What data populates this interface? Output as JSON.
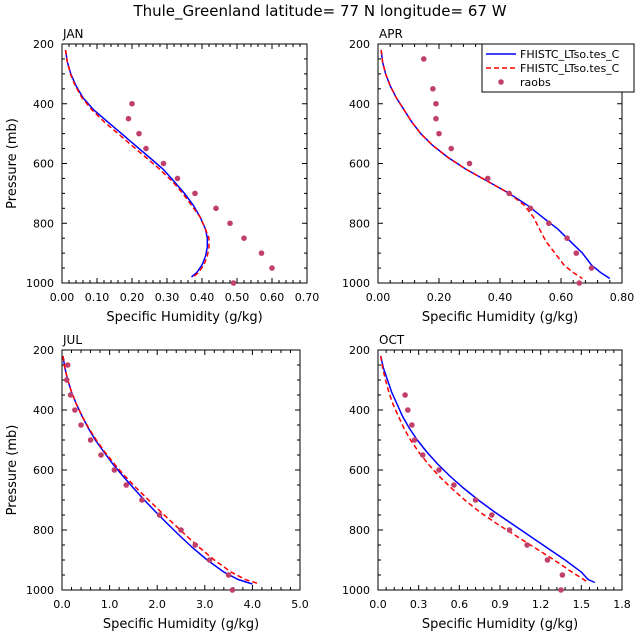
{
  "title": "Thule_Greenland  latitude= 77 N longitude= 67 W",
  "legend": {
    "position": "top-right of APR panel",
    "entries": [
      {
        "label": "FHISTC_LTso.tes_C",
        "color": "#0000ff",
        "style": "solid"
      },
      {
        "label": "FHISTC_LTso.tes_C",
        "color": "#ff0000",
        "style": "dashed"
      },
      {
        "label": "raobs",
        "color": "#c0406a",
        "style": "marker"
      }
    ]
  },
  "chart_data": [
    {
      "type": "line",
      "panel": "JAN",
      "xlabel": "Specific Humidity (g/kg)",
      "ylabel": "Pressure (mb)",
      "xlim": [
        0,
        0.7
      ],
      "ylim": [
        1000,
        200
      ],
      "xticks": [
        "0.00",
        "0.10",
        "0.20",
        "0.30",
        "0.40",
        "0.50",
        "0.60",
        "0.70"
      ],
      "yticks": [
        "200",
        "400",
        "600",
        "800",
        "1000"
      ],
      "series": [
        {
          "color": "#0000ff",
          "dash": "solid",
          "points": [
            [
              0.01,
              220
            ],
            [
              0.015,
              260
            ],
            [
              0.025,
              300
            ],
            [
              0.04,
              340
            ],
            [
              0.06,
              380
            ],
            [
              0.09,
              420
            ],
            [
              0.13,
              460
            ],
            [
              0.17,
              500
            ],
            [
              0.21,
              540
            ],
            [
              0.25,
              580
            ],
            [
              0.29,
              620
            ],
            [
              0.32,
              660
            ],
            [
              0.35,
              700
            ],
            [
              0.375,
              740
            ],
            [
              0.395,
              780
            ],
            [
              0.41,
              820
            ],
            [
              0.415,
              850
            ],
            [
              0.415,
              880
            ],
            [
              0.41,
              910
            ],
            [
              0.4,
              940
            ],
            [
              0.385,
              965
            ],
            [
              0.37,
              980
            ]
          ]
        },
        {
          "color": "#ff0000",
          "dash": "dashed",
          "points": [
            [
              0.01,
              220
            ],
            [
              0.015,
              260
            ],
            [
              0.024,
              300
            ],
            [
              0.038,
              340
            ],
            [
              0.057,
              380
            ],
            [
              0.085,
              420
            ],
            [
              0.12,
              460
            ],
            [
              0.16,
              500
            ],
            [
              0.2,
              540
            ],
            [
              0.24,
              580
            ],
            [
              0.28,
              620
            ],
            [
              0.315,
              660
            ],
            [
              0.345,
              700
            ],
            [
              0.37,
              740
            ],
            [
              0.395,
              780
            ],
            [
              0.41,
              820
            ],
            [
              0.42,
              850
            ],
            [
              0.42,
              880
            ],
            [
              0.415,
              910
            ],
            [
              0.405,
              940
            ],
            [
              0.39,
              965
            ],
            [
              0.375,
              980
            ]
          ]
        },
        {
          "color": "#c0406a",
          "dash": "markers",
          "points": [
            [
              0.2,
              400
            ],
            [
              0.19,
              450
            ],
            [
              0.22,
              500
            ],
            [
              0.24,
              550
            ],
            [
              0.29,
              600
            ],
            [
              0.33,
              650
            ],
            [
              0.38,
              700
            ],
            [
              0.44,
              750
            ],
            [
              0.48,
              800
            ],
            [
              0.52,
              850
            ],
            [
              0.57,
              900
            ],
            [
              0.6,
              950
            ],
            [
              0.49,
              1000
            ]
          ]
        }
      ]
    },
    {
      "type": "line",
      "panel": "APR",
      "xlabel": "Specific Humidity (g/kg)",
      "ylabel": "",
      "xlim": [
        0,
        0.8
      ],
      "ylim": [
        1000,
        200
      ],
      "xticks": [
        "0.00",
        "0.20",
        "0.40",
        "0.60",
        "0.80"
      ],
      "yticks": [
        "200",
        "400",
        "600",
        "800",
        "1000"
      ],
      "series": [
        {
          "color": "#0000ff",
          "dash": "solid",
          "points": [
            [
              0.01,
              220
            ],
            [
              0.015,
              260
            ],
            [
              0.025,
              300
            ],
            [
              0.04,
              340
            ],
            [
              0.06,
              380
            ],
            [
              0.085,
              420
            ],
            [
              0.11,
              460
            ],
            [
              0.14,
              500
            ],
            [
              0.18,
              540
            ],
            [
              0.23,
              580
            ],
            [
              0.29,
              620
            ],
            [
              0.36,
              660
            ],
            [
              0.43,
              700
            ],
            [
              0.49,
              740
            ],
            [
              0.54,
              780
            ],
            [
              0.59,
              820
            ],
            [
              0.63,
              860
            ],
            [
              0.67,
              900
            ],
            [
              0.7,
              940
            ],
            [
              0.73,
              965
            ],
            [
              0.76,
              985
            ]
          ]
        },
        {
          "color": "#ff0000",
          "dash": "dashed",
          "points": [
            [
              0.01,
              220
            ],
            [
              0.015,
              260
            ],
            [
              0.025,
              300
            ],
            [
              0.04,
              340
            ],
            [
              0.06,
              380
            ],
            [
              0.085,
              420
            ],
            [
              0.11,
              460
            ],
            [
              0.14,
              500
            ],
            [
              0.18,
              540
            ],
            [
              0.23,
              580
            ],
            [
              0.29,
              620
            ],
            [
              0.36,
              660
            ],
            [
              0.43,
              700
            ],
            [
              0.48,
              740
            ],
            [
              0.51,
              780
            ],
            [
              0.53,
              820
            ],
            [
              0.55,
              860
            ],
            [
              0.58,
              900
            ],
            [
              0.61,
              940
            ],
            [
              0.64,
              965
            ],
            [
              0.67,
              985
            ]
          ]
        },
        {
          "color": "#c0406a",
          "dash": "markers",
          "points": [
            [
              0.15,
              250
            ],
            [
              0.18,
              350
            ],
            [
              0.19,
              400
            ],
            [
              0.19,
              450
            ],
            [
              0.2,
              500
            ],
            [
              0.24,
              550
            ],
            [
              0.3,
              600
            ],
            [
              0.36,
              650
            ],
            [
              0.43,
              700
            ],
            [
              0.5,
              750
            ],
            [
              0.56,
              800
            ],
            [
              0.62,
              850
            ],
            [
              0.65,
              900
            ],
            [
              0.7,
              950
            ],
            [
              0.66,
              1000
            ]
          ]
        }
      ]
    },
    {
      "type": "line",
      "panel": "JUL",
      "xlabel": "Specific Humidity (g/kg)",
      "ylabel": "Pressure (mb)",
      "xlim": [
        0,
        5.0
      ],
      "ylim": [
        1000,
        200
      ],
      "xticks": [
        "0.0",
        "1.0",
        "2.0",
        "3.0",
        "4.0",
        "5.0"
      ],
      "yticks": [
        "200",
        "400",
        "600",
        "800",
        "1000"
      ],
      "series": [
        {
          "color": "#0000ff",
          "dash": "solid",
          "points": [
            [
              0.02,
              220
            ],
            [
              0.06,
              260
            ],
            [
              0.12,
              300
            ],
            [
              0.2,
              340
            ],
            [
              0.3,
              380
            ],
            [
              0.42,
              420
            ],
            [
              0.55,
              460
            ],
            [
              0.7,
              500
            ],
            [
              0.88,
              540
            ],
            [
              1.07,
              580
            ],
            [
              1.28,
              620
            ],
            [
              1.5,
              660
            ],
            [
              1.73,
              700
            ],
            [
              1.97,
              740
            ],
            [
              2.22,
              780
            ],
            [
              2.48,
              820
            ],
            [
              2.75,
              860
            ],
            [
              3.05,
              900
            ],
            [
              3.4,
              940
            ],
            [
              3.7,
              965
            ],
            [
              4.0,
              980
            ]
          ]
        },
        {
          "color": "#ff0000",
          "dash": "dashed",
          "points": [
            [
              0.02,
              220
            ],
            [
              0.06,
              260
            ],
            [
              0.12,
              300
            ],
            [
              0.2,
              340
            ],
            [
              0.3,
              380
            ],
            [
              0.42,
              420
            ],
            [
              0.56,
              460
            ],
            [
              0.72,
              500
            ],
            [
              0.9,
              540
            ],
            [
              1.1,
              580
            ],
            [
              1.32,
              620
            ],
            [
              1.56,
              660
            ],
            [
              1.82,
              700
            ],
            [
              2.08,
              740
            ],
            [
              2.35,
              780
            ],
            [
              2.62,
              820
            ],
            [
              2.9,
              860
            ],
            [
              3.2,
              900
            ],
            [
              3.55,
              940
            ],
            [
              3.85,
              965
            ],
            [
              4.15,
              980
            ]
          ]
        },
        {
          "color": "#c0406a",
          "dash": "markers",
          "points": [
            [
              0.12,
              250
            ],
            [
              0.1,
              300
            ],
            [
              0.18,
              350
            ],
            [
              0.27,
              400
            ],
            [
              0.4,
              450
            ],
            [
              0.6,
              500
            ],
            [
              0.82,
              550
            ],
            [
              1.1,
              600
            ],
            [
              1.35,
              650
            ],
            [
              1.68,
              700
            ],
            [
              2.05,
              750
            ],
            [
              2.5,
              800
            ],
            [
              2.8,
              850
            ],
            [
              3.1,
              900
            ],
            [
              3.5,
              950
            ],
            [
              3.58,
              1000
            ]
          ]
        }
      ]
    },
    {
      "type": "line",
      "panel": "OCT",
      "xlabel": "Specific Humidity (g/kg)",
      "ylabel": "",
      "xlim": [
        0,
        1.8
      ],
      "ylim": [
        1000,
        200
      ],
      "xticks": [
        "0.0",
        "0.3",
        "0.6",
        "0.9",
        "1.2",
        "1.5",
        "1.8"
      ],
      "yticks": [
        "200",
        "400",
        "600",
        "800",
        "1000"
      ],
      "series": [
        {
          "color": "#0000ff",
          "dash": "solid",
          "points": [
            [
              0.02,
              220
            ],
            [
              0.04,
              260
            ],
            [
              0.07,
              300
            ],
            [
              0.1,
              340
            ],
            [
              0.14,
              380
            ],
            [
              0.18,
              420
            ],
            [
              0.23,
              460
            ],
            [
              0.29,
              500
            ],
            [
              0.36,
              540
            ],
            [
              0.44,
              580
            ],
            [
              0.53,
              620
            ],
            [
              0.63,
              660
            ],
            [
              0.74,
              700
            ],
            [
              0.86,
              740
            ],
            [
              0.99,
              780
            ],
            [
              1.12,
              820
            ],
            [
              1.25,
              860
            ],
            [
              1.38,
              900
            ],
            [
              1.5,
              940
            ],
            [
              1.55,
              965
            ],
            [
              1.6,
              975
            ]
          ]
        },
        {
          "color": "#ff0000",
          "dash": "dashed",
          "points": [
            [
              0.02,
              220
            ],
            [
              0.035,
              260
            ],
            [
              0.055,
              300
            ],
            [
              0.08,
              340
            ],
            [
              0.11,
              380
            ],
            [
              0.15,
              420
            ],
            [
              0.19,
              460
            ],
            [
              0.24,
              500
            ],
            [
              0.3,
              540
            ],
            [
              0.37,
              580
            ],
            [
              0.45,
              620
            ],
            [
              0.54,
              660
            ],
            [
              0.64,
              700
            ],
            [
              0.75,
              740
            ],
            [
              0.88,
              780
            ],
            [
              1.02,
              820
            ],
            [
              1.16,
              860
            ],
            [
              1.3,
              900
            ],
            [
              1.43,
              940
            ],
            [
              1.5,
              960
            ],
            [
              1.55,
              975
            ]
          ]
        },
        {
          "color": "#c0406a",
          "dash": "markers",
          "points": [
            [
              0.2,
              350
            ],
            [
              0.22,
              400
            ],
            [
              0.25,
              450
            ],
            [
              0.27,
              500
            ],
            [
              0.33,
              550
            ],
            [
              0.45,
              600
            ],
            [
              0.56,
              650
            ],
            [
              0.72,
              700
            ],
            [
              0.84,
              750
            ],
            [
              0.97,
              800
            ],
            [
              1.1,
              850
            ],
            [
              1.25,
              900
            ],
            [
              1.36,
              950
            ],
            [
              1.35,
              1000
            ]
          ]
        }
      ]
    }
  ]
}
